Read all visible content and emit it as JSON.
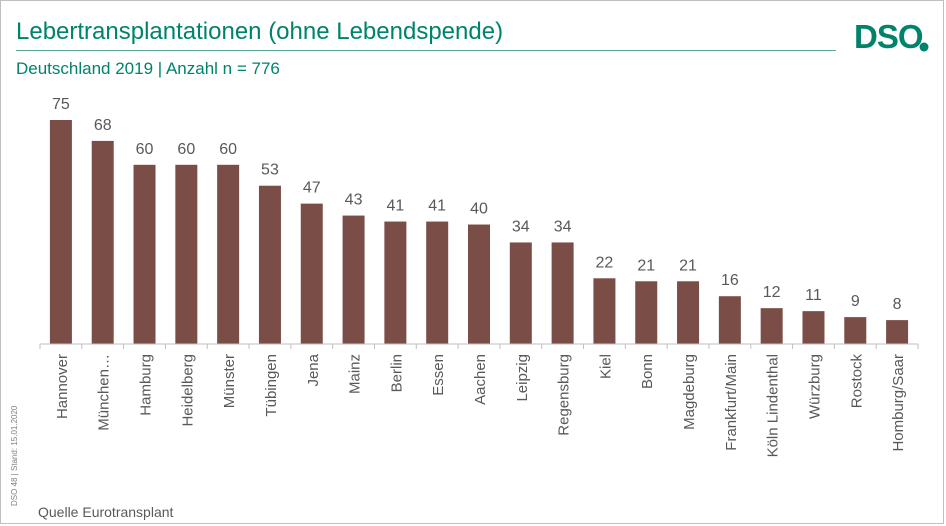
{
  "header": {
    "title": "Lebertransplantationen (ohne Lebendspende)",
    "subtitle": "Deutschland 2019 | Anzahl n = 776",
    "logo_text": "DSO"
  },
  "footer": {
    "source": "Quelle  Eurotransplant",
    "stand": "DSO 48 | Stand: 15.01.2020"
  },
  "colors": {
    "bar": "#7b4d47",
    "accent": "#00836b",
    "label": "#595959"
  },
  "chart_data": {
    "type": "bar",
    "title": "Lebertransplantationen (ohne Lebendspende)",
    "subtitle": "Deutschland 2019 | Anzahl n = 776",
    "categories": [
      "Hannover",
      "München…",
      "Hamburg",
      "Heidelberg",
      "Münster",
      "Tübingen",
      "Jena",
      "Mainz",
      "Berlin",
      "Essen",
      "Aachen",
      "Leipzig",
      "Regensburg",
      "Kiel",
      "Bonn",
      "Magdeburg",
      "Frankfurt/Main",
      "Köln Lindenthal",
      "Würzburg",
      "Rostock",
      "Homburg/Saar"
    ],
    "values": [
      75,
      68,
      60,
      60,
      60,
      53,
      47,
      43,
      41,
      41,
      40,
      34,
      34,
      22,
      21,
      21,
      16,
      12,
      11,
      9,
      8
    ],
    "ylim": [
      0,
      75
    ],
    "xlabel": "",
    "ylabel": "",
    "grid": false,
    "data_labels": true
  }
}
